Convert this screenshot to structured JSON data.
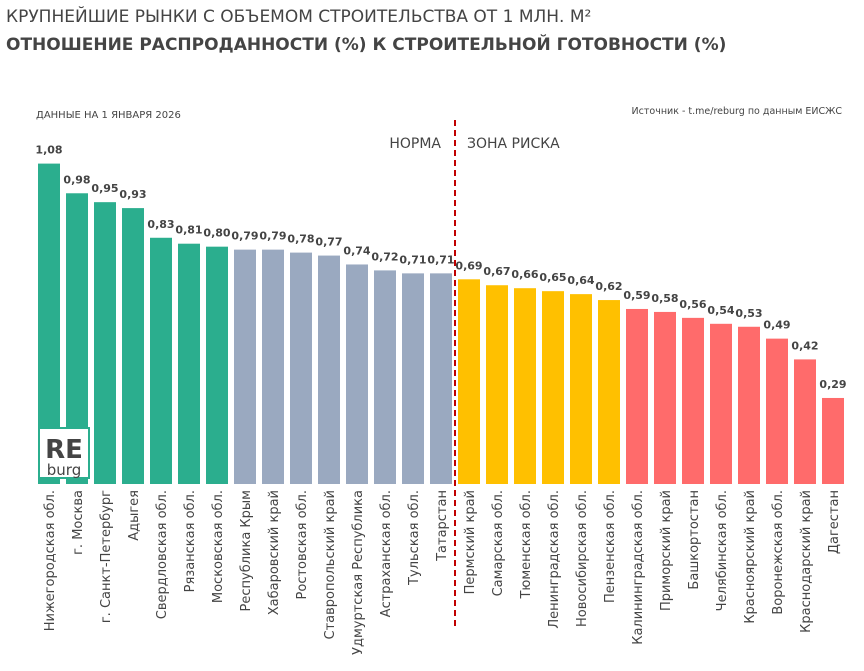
{
  "chart_data": {
    "type": "bar",
    "title": "КРУПНЕЙШИЕ РЫНКИ С ОБЪЕМОМ СТРОИТЕЛЬСТВА ОТ 1 МЛН. М²",
    "subtitle": "ОТНОШЕНИЕ РАСПРОДАННОСТИ (%) К СТРОИТЕЛЬНОЙ ГОТОВНОСТИ (%)",
    "note": "ДАННЫЕ НА 1 ЯНВАРЯ 2026",
    "source": "Источник - t.me/reburg по данным ЕИСЖС",
    "annotations": [
      {
        "text": "НОРМА",
        "color": "#1aa383"
      },
      {
        "text": "ЗОНА РИСКА",
        "color": "#c00000"
      }
    ],
    "categories": [
      "Нижегородская обл.",
      "г. Москва",
      "г. Санкт-Петербург",
      "Адыгея",
      "Свердловская обл.",
      "Рязанская обл.",
      "Московская обл.",
      "Республика Крым",
      "Хабаровский край",
      "Ростовская обл.",
      "Ставропольский край",
      "Удмуртская Республика",
      "Астраханская обл.",
      "Тульская обл.",
      "Татарстан",
      "Пермский край",
      "Самарская обл.",
      "Тюменская обл.",
      "Ленинградская обл.",
      "Новосибирская обл.",
      "Пензенская обл.",
      "Калининградская обл.",
      "Приморский край",
      "Башкортостан",
      "Челябинская обл.",
      "Красноярский край",
      "Воронежская обл.",
      "Краснодарский край",
      "Дагестан"
    ],
    "values": [
      1.08,
      0.98,
      0.95,
      0.93,
      0.83,
      0.81,
      0.8,
      0.79,
      0.79,
      0.78,
      0.77,
      0.74,
      0.72,
      0.71,
      0.71,
      0.69,
      0.67,
      0.66,
      0.65,
      0.64,
      0.62,
      0.59,
      0.58,
      0.56,
      0.54,
      0.53,
      0.49,
      0.42,
      0.29
    ],
    "value_labels": [
      "1,08",
      "0,98",
      "0,95",
      "0,93",
      "0,83",
      "0,81",
      "0,80",
      "0,79",
      "0,79",
      "0,78",
      "0,77",
      "0,74",
      "0,72",
      "0,71",
      "0,71",
      "0,69",
      "0,67",
      "0,66",
      "0,65",
      "0,64",
      "0,62",
      "0,59",
      "0,58",
      "0,56",
      "0,54",
      "0,53",
      "0,49",
      "0,42",
      "0,29"
    ],
    "colors": [
      "#2bae8e",
      "#2bae8e",
      "#2bae8e",
      "#2bae8e",
      "#2bae8e",
      "#2bae8e",
      "#2bae8e",
      "#9aa9c0",
      "#9aa9c0",
      "#9aa9c0",
      "#9aa9c0",
      "#9aa9c0",
      "#9aa9c0",
      "#9aa9c0",
      "#9aa9c0",
      "#ffc000",
      "#ffc000",
      "#ffc000",
      "#ffc000",
      "#ffc000",
      "#ffc000",
      "#ff6b6b",
      "#ff6b6b",
      "#ff6b6b",
      "#ff6b6b",
      "#ff6b6b",
      "#ff6b6b",
      "#ff6b6b",
      "#ff6b6b"
    ],
    "ylim": [
      0,
      1.2
    ]
  },
  "logo": {
    "line1": "RE",
    "line2": "burg"
  }
}
